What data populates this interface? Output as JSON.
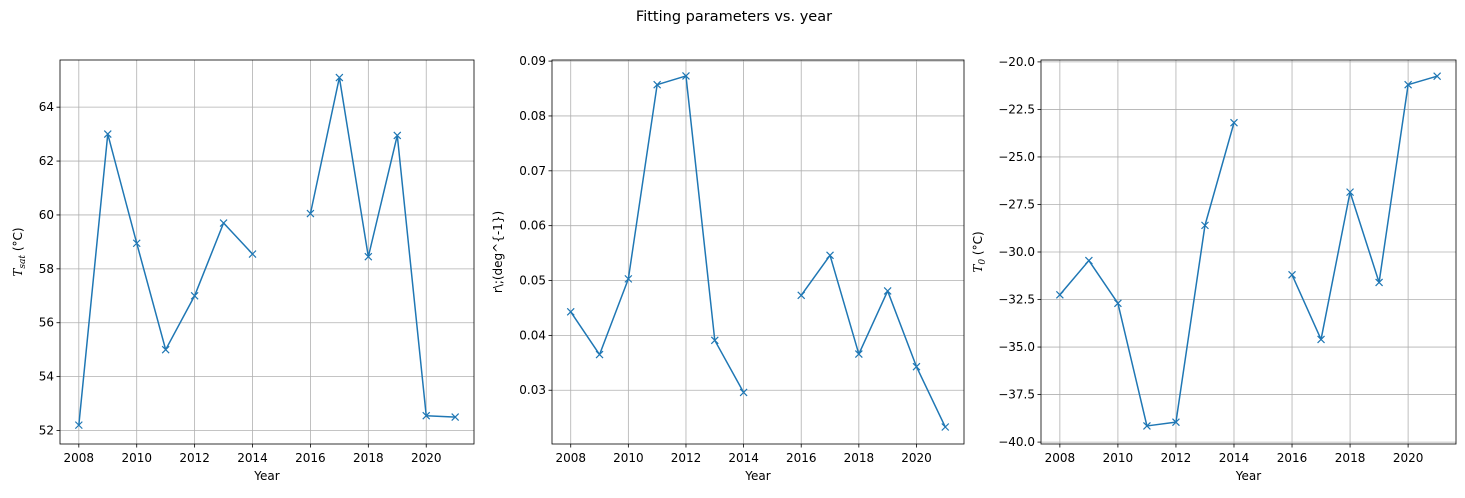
{
  "figure": {
    "suptitle": "Fitting parameters vs. year"
  },
  "colors": {
    "line": "#1f77b4",
    "grid": "#b0b0b0",
    "spine": "#000000",
    "background": "#ffffff"
  },
  "chart_data": [
    {
      "type": "line",
      "marker": "x",
      "grid": true,
      "xlabel": "Year",
      "ylabel": "T_sat (°C)",
      "ylabel_main": "T",
      "ylabel_sub": "sat",
      "ylabel_unit": " (°C)",
      "xlim": [
        2007.35,
        2021.65
      ],
      "ylim": [
        51.5,
        65.75
      ],
      "xticks": [
        2008,
        2010,
        2012,
        2014,
        2016,
        2018,
        2020
      ],
      "xtick_labels": [
        "2008",
        "2010",
        "2012",
        "2014",
        "2016",
        "2018",
        "2020"
      ],
      "yticks": [
        52,
        54,
        56,
        58,
        60,
        62,
        64
      ],
      "ytick_labels": [
        "52",
        "54",
        "56",
        "58",
        "60",
        "62",
        "64"
      ],
      "x": [
        2008,
        2009,
        2010,
        2011,
        2012,
        2013,
        2014,
        2015,
        2016,
        2017,
        2018,
        2019,
        2020,
        2021
      ],
      "y": [
        52.2,
        63.0,
        58.95,
        55.0,
        57.0,
        59.7,
        58.55,
        null,
        60.05,
        65.1,
        58.45,
        62.95,
        52.55,
        52.5
      ]
    },
    {
      "type": "line",
      "marker": "x",
      "grid": true,
      "xlabel": "Year",
      "ylabel": "r\\;(deg^{-1})",
      "xlim": [
        2007.35,
        2021.65
      ],
      "ylim": [
        0.0202,
        0.0902
      ],
      "xticks": [
        2008,
        2010,
        2012,
        2014,
        2016,
        2018,
        2020
      ],
      "xtick_labels": [
        "2008",
        "2010",
        "2012",
        "2014",
        "2016",
        "2018",
        "2020"
      ],
      "yticks": [
        0.03,
        0.04,
        0.05,
        0.06,
        0.07,
        0.08,
        0.09
      ],
      "ytick_labels": [
        "0.03",
        "0.04",
        "0.05",
        "0.06",
        "0.07",
        "0.08",
        "0.09"
      ],
      "x": [
        2008,
        2009,
        2010,
        2011,
        2012,
        2013,
        2014,
        2015,
        2016,
        2017,
        2018,
        2019,
        2020,
        2021
      ],
      "y": [
        0.0443,
        0.0365,
        0.0503,
        0.0857,
        0.0873,
        0.0391,
        0.0296,
        null,
        0.0473,
        0.0546,
        0.0366,
        0.0481,
        0.0343,
        0.0233
      ]
    },
    {
      "type": "line",
      "marker": "x",
      "grid": true,
      "xlabel": "Year",
      "ylabel": "T_0 (°C)",
      "ylabel_main": "T",
      "ylabel_sub": "0",
      "ylabel_unit": " (°C)",
      "xlim": [
        2007.35,
        2021.65
      ],
      "ylim": [
        -40.1,
        -19.9
      ],
      "xticks": [
        2008,
        2010,
        2012,
        2014,
        2016,
        2018,
        2020
      ],
      "xtick_labels": [
        "2008",
        "2010",
        "2012",
        "2014",
        "2016",
        "2018",
        "2020"
      ],
      "yticks": [
        -40.0,
        -37.5,
        -35.0,
        -32.5,
        -30.0,
        -27.5,
        -25.0,
        -22.5,
        -20.0
      ],
      "ytick_labels": [
        "−40.0",
        "−37.5",
        "−35.0",
        "−32.5",
        "−30.0",
        "−27.5",
        "−25.0",
        "−22.5",
        "−20.0"
      ],
      "x": [
        2008,
        2009,
        2010,
        2011,
        2012,
        2013,
        2014,
        2015,
        2016,
        2017,
        2018,
        2019,
        2020,
        2021
      ],
      "y": [
        -32.25,
        -30.45,
        -32.7,
        -39.15,
        -38.95,
        -28.6,
        -23.2,
        null,
        -31.2,
        -34.6,
        -26.85,
        -31.6,
        -21.2,
        -20.75
      ]
    }
  ]
}
